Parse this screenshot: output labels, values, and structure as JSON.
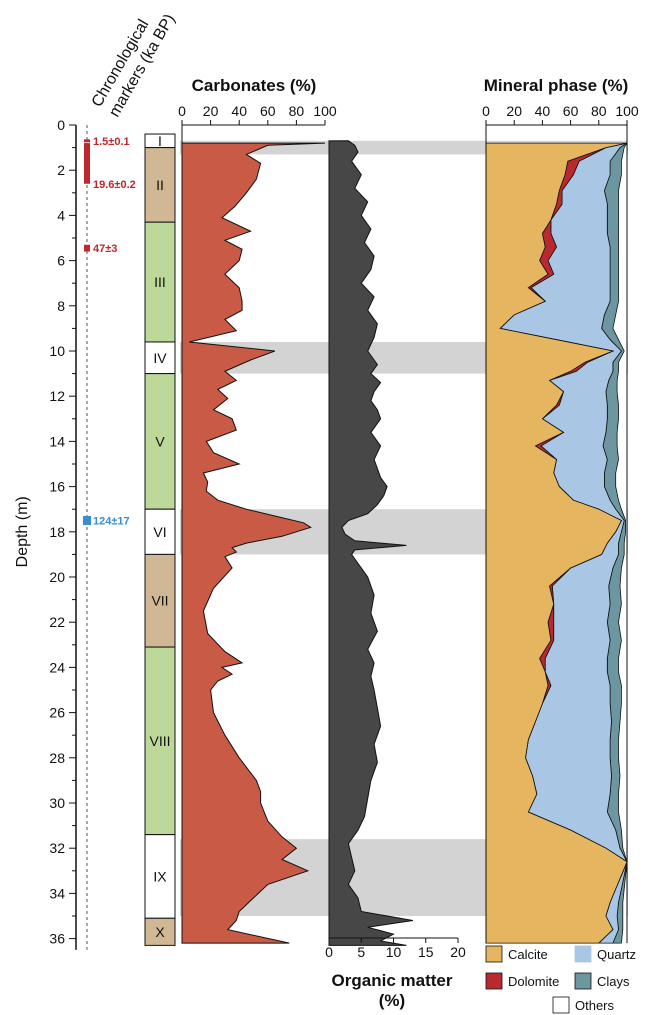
{
  "chart_data": {
    "type": "area",
    "depth_axis": {
      "label": "Depth (m)",
      "range": [
        0,
        36.5
      ],
      "ticks": [
        0,
        2,
        4,
        6,
        8,
        10,
        12,
        14,
        16,
        18,
        20,
        22,
        24,
        26,
        28,
        30,
        32,
        34,
        36
      ]
    },
    "chronology": {
      "title_line1": "Chronological",
      "title_line2": "markers (ka BP)",
      "markers": [
        {
          "label": "1.5±0.1",
          "top": 0.7,
          "bottom": 0.7,
          "color": "#c0272d"
        },
        {
          "label": "19.6±0.2",
          "top": 0.8,
          "bottom": 2.6,
          "color": "#c0272d"
        },
        {
          "label": "47±3",
          "top": 5.3,
          "bottom": 5.6,
          "color": "#c0272d"
        },
        {
          "label": "124±17",
          "top": 17.3,
          "bottom": 17.7,
          "color": "#3a8ed0"
        }
      ]
    },
    "units": [
      {
        "label": "I",
        "top": 0.4,
        "bottom": 1.0,
        "color": "#ffffff"
      },
      {
        "label": "II",
        "top": 1.0,
        "bottom": 4.3,
        "color": "#d1b894"
      },
      {
        "label": "III",
        "top": 4.3,
        "bottom": 9.6,
        "color": "#bcd99a"
      },
      {
        "label": "IV",
        "top": 9.6,
        "bottom": 11.0,
        "color": "#ffffff"
      },
      {
        "label": "V",
        "top": 11.0,
        "bottom": 17.0,
        "color": "#bcd99a"
      },
      {
        "label": "VI",
        "top": 17.0,
        "bottom": 19.0,
        "color": "#ffffff"
      },
      {
        "label": "VII",
        "top": 19.0,
        "bottom": 23.1,
        "color": "#d1b894"
      },
      {
        "label": "VIII",
        "top": 23.1,
        "bottom": 31.4,
        "color": "#bcd99a"
      },
      {
        "label": "IX",
        "top": 31.4,
        "bottom": 35.1,
        "color": "#ffffff"
      },
      {
        "label": "X",
        "top": 35.1,
        "bottom": 36.3,
        "color": "#d1b894"
      }
    ],
    "highlight_bands": [
      [
        0.7,
        1.3
      ],
      [
        9.6,
        11.0
      ],
      [
        17.0,
        19.0
      ],
      [
        31.6,
        35.0
      ]
    ],
    "carbonates": {
      "title": "Carbonates (%)",
      "xlim": [
        0,
        100
      ],
      "ticks": [
        0,
        20,
        40,
        60,
        80,
        100
      ],
      "color": "#c95a45",
      "depth": [
        0.8,
        0.9,
        1.3,
        1.7,
        2.4,
        3.0,
        3.6,
        4.1,
        4.7,
        5.1,
        5.5,
        6.0,
        6.6,
        7.2,
        7.8,
        8.2,
        8.6,
        9.1,
        9.6,
        10.0,
        10.4,
        10.9,
        11.3,
        11.7,
        12.1,
        12.6,
        13.0,
        13.5,
        14.0,
        14.5,
        15.0,
        15.4,
        15.8,
        16.2,
        16.6,
        17.0,
        17.3,
        17.6,
        17.8,
        18.0,
        18.2,
        18.5,
        18.7,
        18.9,
        19.1,
        19.6,
        20.5,
        21.5,
        22.5,
        23.3,
        23.8,
        24.0,
        24.3,
        24.6,
        25.0,
        26.0,
        27.0,
        28.0,
        29.0,
        29.5,
        30.0,
        30.8,
        31.5,
        32.0,
        32.5,
        33.0,
        33.6,
        34.2,
        34.8,
        35.2,
        35.6,
        36.1,
        36.2
      ],
      "value": [
        100,
        60,
        45,
        55,
        52,
        45,
        37,
        28,
        48,
        30,
        42,
        40,
        30,
        40,
        42,
        42,
        30,
        38,
        5,
        65,
        48,
        30,
        38,
        25,
        32,
        22,
        35,
        38,
        17,
        22,
        40,
        15,
        18,
        17,
        25,
        45,
        65,
        85,
        90,
        80,
        70,
        45,
        35,
        38,
        30,
        35,
        22,
        15,
        18,
        30,
        42,
        28,
        35,
        25,
        20,
        22,
        30,
        40,
        52,
        55,
        55,
        60,
        70,
        80,
        70,
        88,
        60,
        50,
        40,
        38,
        32,
        68,
        75
      ]
    },
    "organic_matter": {
      "title": "Organic matter",
      "unit": "(%)",
      "xlim": [
        0,
        20
      ],
      "ticks": [
        0,
        5,
        10,
        15,
        20
      ],
      "color": "#474747",
      "depth": [
        0.7,
        0.9,
        1.2,
        1.6,
        2.2,
        2.8,
        3.4,
        4.0,
        4.6,
        5.2,
        5.8,
        6.4,
        7.0,
        7.6,
        8.2,
        8.8,
        9.4,
        10.0,
        10.6,
        11.0,
        11.4,
        11.8,
        12.2,
        12.6,
        13.0,
        13.6,
        14.2,
        14.8,
        15.2,
        15.6,
        16.0,
        16.4,
        16.8,
        17.2,
        17.5,
        17.8,
        18.1,
        18.4,
        18.6,
        18.8,
        19.0,
        19.4,
        20.0,
        20.8,
        21.6,
        22.4,
        23.2,
        23.8,
        24.4,
        25.0,
        25.8,
        26.6,
        27.4,
        28.2,
        29.0,
        29.8,
        30.6,
        31.2,
        31.8,
        32.4,
        33.0,
        33.6,
        34.2,
        34.8,
        35.2,
        35.5,
        35.8,
        36.1,
        36.3
      ],
      "value": [
        3,
        4,
        4.5,
        3.5,
        5,
        4,
        6,
        5,
        6.5,
        5.5,
        7,
        6.5,
        5,
        7,
        6,
        7.5,
        7,
        6,
        7.5,
        6.5,
        8,
        7,
        6.5,
        7.5,
        8,
        6.5,
        8,
        7,
        7.5,
        8,
        9,
        8.5,
        7.5,
        6,
        3,
        2,
        2.5,
        4,
        12,
        4,
        3.5,
        4.5,
        6,
        7,
        6.5,
        7.5,
        6,
        7,
        6.5,
        7,
        7.5,
        8,
        7,
        7.5,
        6.5,
        6,
        5.5,
        4.5,
        3,
        3.5,
        4,
        3,
        4.5,
        5,
        13,
        6,
        10,
        8,
        12
      ]
    },
    "mineral_phase": {
      "title": "Mineral phase (%)",
      "xlim": [
        0,
        100
      ],
      "ticks": [
        0,
        20,
        40,
        60,
        80,
        100
      ],
      "layers": [
        "Calcite",
        "Dolomite",
        "Quartz",
        "Clays",
        "Others"
      ],
      "colors": {
        "Calcite": "#e5b55f",
        "Dolomite": "#b82a30",
        "Quartz": "#a9c6e4",
        "Clays": "#6c97a0",
        "Others": "#ffffff"
      },
      "depth": [
        0.8,
        1.0,
        1.6,
        2.2,
        2.9,
        3.5,
        4.2,
        4.8,
        5.4,
        6.0,
        6.6,
        7.2,
        7.8,
        8.4,
        9.0,
        9.5,
        10.0,
        10.5,
        10.9,
        11.3,
        11.8,
        12.4,
        13.0,
        13.6,
        14.2,
        14.8,
        15.4,
        16.0,
        16.6,
        17.0,
        17.5,
        18.0,
        18.5,
        19.0,
        19.6,
        20.4,
        21.2,
        22.0,
        22.8,
        23.6,
        24.2,
        24.8,
        25.6,
        26.4,
        27.2,
        28.0,
        28.8,
        29.6,
        30.4,
        31.2,
        32.0,
        32.6,
        33.2,
        33.8,
        34.4,
        35.0,
        35.6,
        36.2
      ],
      "calcite": [
        100,
        85,
        58,
        56,
        52,
        50,
        46,
        40,
        42,
        38,
        44,
        30,
        42,
        20,
        10,
        50,
        90,
        70,
        60,
        45,
        55,
        50,
        40,
        55,
        35,
        50,
        48,
        52,
        62,
        80,
        96,
        92,
        86,
        82,
        60,
        45,
        48,
        44,
        46,
        38,
        42,
        44,
        40,
        35,
        30,
        28,
        33,
        36,
        30,
        60,
        85,
        100,
        96,
        92,
        88,
        85,
        90,
        80
      ],
      "dolomite": [
        0,
        0,
        8,
        6,
        2,
        4,
        0,
        6,
        8,
        6,
        4,
        2,
        0,
        0,
        0,
        0,
        0,
        2,
        4,
        0,
        0,
        2,
        0,
        0,
        4,
        0,
        0,
        0,
        0,
        0,
        0,
        0,
        0,
        0,
        0,
        2,
        0,
        4,
        2,
        4,
        0,
        2,
        0,
        0,
        0,
        0,
        0,
        0,
        0,
        0,
        0,
        0,
        0,
        0,
        0,
        0,
        0,
        0
      ],
      "quartz": [
        0,
        10,
        22,
        26,
        30,
        32,
        40,
        40,
        38,
        44,
        40,
        56,
        46,
        64,
        72,
        38,
        6,
        18,
        26,
        42,
        30,
        34,
        46,
        30,
        44,
        36,
        36,
        32,
        26,
        12,
        2,
        4,
        8,
        12,
        30,
        40,
        40,
        38,
        40,
        44,
        44,
        42,
        48,
        54,
        58,
        60,
        56,
        52,
        56,
        32,
        10,
        0,
        2,
        4,
        6,
        8,
        4,
        10
      ],
      "clays": [
        0,
        3,
        8,
        8,
        10,
        8,
        8,
        8,
        6,
        6,
        6,
        6,
        6,
        8,
        8,
        6,
        2,
        4,
        4,
        6,
        8,
        8,
        8,
        8,
        10,
        8,
        8,
        8,
        6,
        4,
        1,
        3,
        4,
        4,
        6,
        8,
        8,
        8,
        8,
        8,
        8,
        8,
        8,
        6,
        6,
        6,
        6,
        6,
        8,
        4,
        2,
        0,
        1,
        2,
        3,
        4,
        3,
        6
      ]
    }
  }
}
